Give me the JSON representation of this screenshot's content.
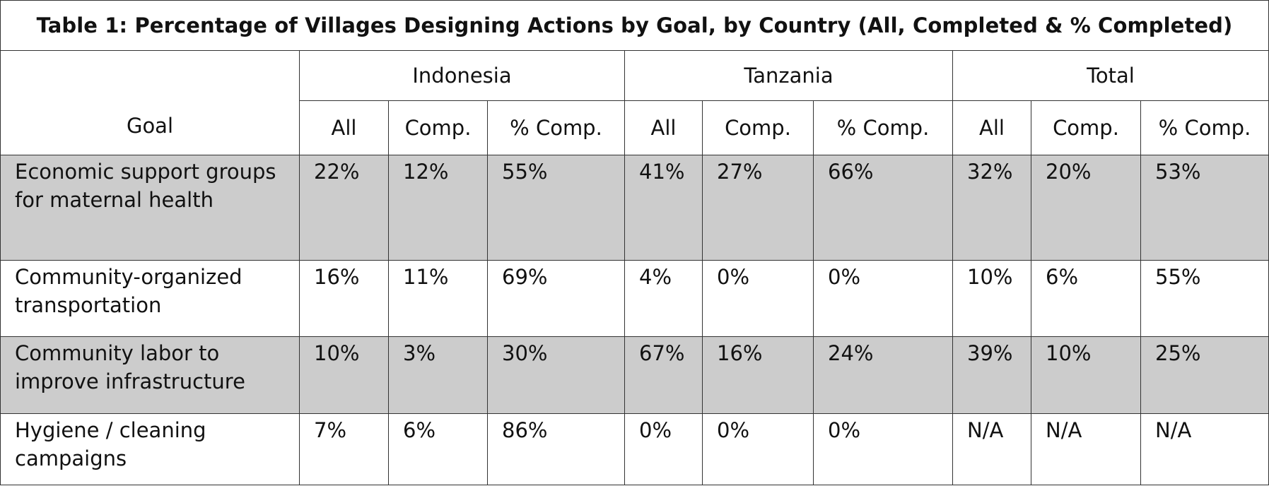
{
  "title": "Table 1: Percentage of Villages Designing Actions by Goal, by Country (All, Completed & % Completed)",
  "header": {
    "goal_label": "Goal",
    "countries": [
      "Indonesia",
      "Tanzania",
      "Total"
    ],
    "sub_columns": [
      "All",
      "Comp.",
      "% Comp."
    ]
  },
  "rows": [
    {
      "goal": "Economic support groups for maternal health",
      "indonesia": [
        "22%",
        "12%",
        "55%"
      ],
      "tanzania": [
        "41%",
        "27%",
        "66%"
      ],
      "total": [
        "32%",
        "20%",
        "53%"
      ]
    },
    {
      "goal": "Community-organized transportation",
      "indonesia": [
        "16%",
        "11%",
        "69%"
      ],
      "tanzania": [
        "4%",
        "0%",
        "0%"
      ],
      "total": [
        "10%",
        "6%",
        "55%"
      ]
    },
    {
      "goal": "Community labor to improve infrastructure",
      "indonesia": [
        "10%",
        "3%",
        "30%"
      ],
      "tanzania": [
        "67%",
        "16%",
        "24%"
      ],
      "total": [
        "39%",
        "10%",
        "25%"
      ]
    },
    {
      "goal": "Hygiene / cleaning campaigns",
      "indonesia": [
        "7%",
        "6%",
        "86%"
      ],
      "tanzania": [
        "0%",
        "0%",
        "0%"
      ],
      "total": [
        "N/A",
        "N/A",
        "N/A"
      ]
    }
  ],
  "colors": {
    "shaded_row": "#cccccc",
    "border": "#333333"
  }
}
